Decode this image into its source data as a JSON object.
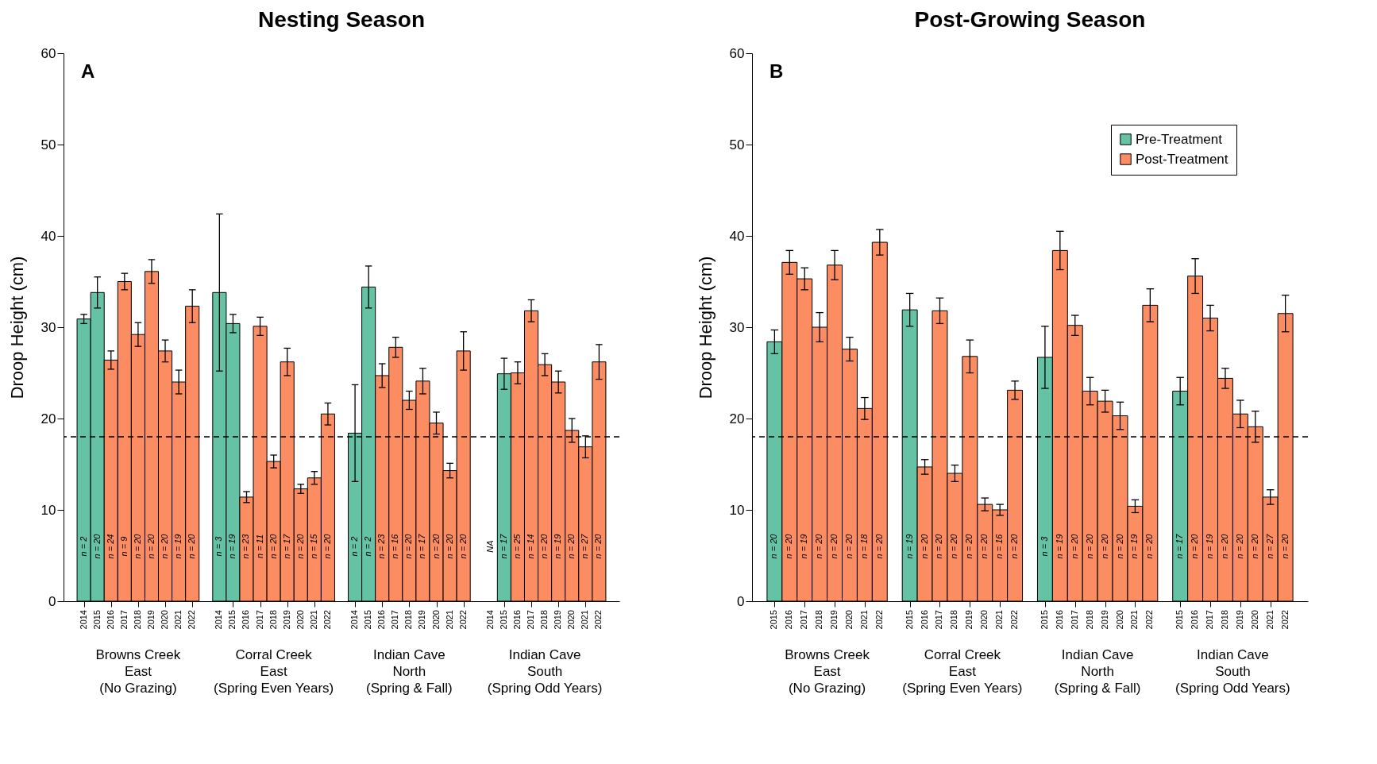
{
  "chart_data": [
    {
      "type": "bar",
      "title": "Nesting Season",
      "ylabel": "Droop Height (cm)",
      "ylim": [
        0,
        60
      ],
      "yticks": [
        0,
        10,
        20,
        30,
        40,
        50,
        60
      ],
      "categories": [
        "2014",
        "2015",
        "2016",
        "2017",
        "2018",
        "2019",
        "2020",
        "2021",
        "2022",
        null,
        "2014",
        "2015",
        "2016",
        "2017",
        "2018",
        "2019",
        "2020",
        "2021",
        "2022",
        null,
        "2014",
        "2015",
        "2016",
        "2017",
        "2018",
        "2019",
        "2020",
        "2021",
        "2022",
        null,
        "2014",
        "2015",
        "2016",
        "2017",
        "2018",
        "2019",
        "2020",
        "2021",
        "2022"
      ],
      "series": [
        {
          "color": "#66c2a5",
          "values": [
            30.9,
            33.8,
            null,
            null,
            null,
            null,
            null,
            null,
            null,
            null,
            33.8,
            30.4,
            null,
            null,
            null,
            null,
            null,
            null,
            null,
            null,
            18.4,
            34.4,
            null,
            null,
            null,
            null,
            null,
            null,
            null,
            null,
            null,
            24.9,
            null,
            null,
            null,
            null,
            null,
            null,
            null
          ],
          "errors": [
            0.5,
            1.7,
            null,
            null,
            null,
            null,
            null,
            null,
            null,
            null,
            8.6,
            1.0,
            null,
            null,
            null,
            null,
            null,
            null,
            null,
            null,
            5.3,
            2.3,
            null,
            null,
            null,
            null,
            null,
            null,
            null,
            null,
            null,
            1.7,
            null,
            null,
            null,
            null,
            null,
            null,
            null
          ]
        },
        {
          "color": "#fc8d62",
          "values": [
            null,
            null,
            26.4,
            35.0,
            29.2,
            36.1,
            27.4,
            24.0,
            32.3,
            null,
            null,
            null,
            11.4,
            30.1,
            15.3,
            26.2,
            12.3,
            13.5,
            20.5,
            null,
            null,
            null,
            24.7,
            27.8,
            22.0,
            24.1,
            19.5,
            14.3,
            27.4,
            null,
            null,
            null,
            25.0,
            31.8,
            25.9,
            24.0,
            18.7,
            16.9,
            26.2
          ],
          "errors": [
            null,
            null,
            1.0,
            0.9,
            1.3,
            1.3,
            1.2,
            1.3,
            1.8,
            null,
            null,
            null,
            0.6,
            1.0,
            0.7,
            1.5,
            0.5,
            0.7,
            1.2,
            null,
            null,
            null,
            1.3,
            1.1,
            1.0,
            1.4,
            1.2,
            0.8,
            2.1,
            null,
            null,
            null,
            1.2,
            1.2,
            1.2,
            1.2,
            1.3,
            1.2,
            1.9
          ]
        }
      ],
      "ref_lines": [
        {
          "axis": "y",
          "value": 18,
          "color": "#000000",
          "line_style": "dashed"
        }
      ],
      "annotations": [
        {
          "text": "A"
        },
        "n = 2",
        "n = 20",
        "n = 24",
        "n = 9",
        "n = 20",
        "n = 20",
        "n = 20",
        "n = 19",
        "n = 20",
        "n = 3",
        "n = 19",
        "n = 23",
        "n = 11",
        "n = 20",
        "n = 17",
        "n = 20",
        "n = 15",
        "n = 20",
        "n = 2",
        "n = 2",
        "n = 23",
        "n = 16",
        "n = 20",
        "n = 17",
        "n = 20",
        "n = 20",
        "n = 20",
        "NA",
        "n = 17",
        "n = 25",
        "n = 14",
        "n = 20",
        "n = 19",
        "n = 20",
        "n = 27",
        "n = 20",
        "Browns Creek\nEast\n(No Grazing)",
        "Corral Creek\nEast\n(Spring Even Years)",
        "Indian Cave\nNorth\n(Spring & Fall)",
        "Indian Cave\nSouth\n(Spring Odd Years)"
      ]
    },
    {
      "type": "bar",
      "title": "Post-Growing Season",
      "ylabel": "Droop Height (cm)",
      "ylim": [
        0,
        60
      ],
      "yticks": [
        0,
        10,
        20,
        30,
        40,
        50,
        60
      ],
      "legend": "top right",
      "categories": [
        "2015",
        "2016",
        "2017",
        "2018",
        "2019",
        "2020",
        "2021",
        "2022",
        null,
        "2015",
        "2016",
        "2017",
        "2018",
        "2019",
        "2020",
        "2021",
        "2022",
        null,
        "2015",
        "2016",
        "2017",
        "2018",
        "2019",
        "2020",
        "2021",
        "2022",
        null,
        "2015",
        "2016",
        "2017",
        "2018",
        "2019",
        "2020",
        "2021",
        "2022"
      ],
      "series": [
        {
          "name": "Pre-Treatment",
          "color": "#66c2a5",
          "values": [
            28.4,
            null,
            null,
            null,
            null,
            null,
            null,
            null,
            null,
            31.9,
            null,
            null,
            null,
            null,
            null,
            null,
            null,
            null,
            26.7,
            null,
            null,
            null,
            null,
            null,
            null,
            null,
            null,
            23.0,
            null,
            null,
            null,
            null,
            null,
            null,
            null
          ],
          "errors": [
            1.3,
            null,
            null,
            null,
            null,
            null,
            null,
            null,
            null,
            1.8,
            null,
            null,
            null,
            null,
            null,
            null,
            null,
            null,
            3.4,
            null,
            null,
            null,
            null,
            null,
            null,
            null,
            null,
            1.5,
            null,
            null,
            null,
            null,
            null,
            null,
            null
          ]
        },
        {
          "name": "Post-Treatment",
          "color": "#fc8d62",
          "values": [
            null,
            37.1,
            35.3,
            30.0,
            36.8,
            27.6,
            21.1,
            39.3,
            null,
            null,
            14.7,
            31.8,
            14.0,
            26.8,
            10.6,
            10.0,
            23.1,
            null,
            null,
            38.4,
            30.2,
            23.0,
            21.9,
            20.3,
            10.4,
            32.4,
            null,
            null,
            35.6,
            31.0,
            24.4,
            20.5,
            19.1,
            11.4,
            31.5
          ],
          "errors": [
            null,
            1.3,
            1.2,
            1.6,
            1.6,
            1.3,
            1.2,
            1.4,
            null,
            null,
            0.8,
            1.4,
            0.9,
            1.8,
            0.7,
            0.6,
            1.0,
            null,
            null,
            2.1,
            1.1,
            1.5,
            1.2,
            1.5,
            0.7,
            1.8,
            null,
            null,
            1.9,
            1.4,
            1.1,
            1.5,
            1.7,
            0.8,
            2.0
          ]
        }
      ],
      "ref_lines": [
        {
          "axis": "y",
          "value": 18,
          "color": "#000000",
          "line_style": "dashed"
        }
      ],
      "annotations": [
        {
          "text": "B"
        },
        "n = 20",
        "n = 20",
        "n = 19",
        "n = 20",
        "n = 20",
        "n = 20",
        "n = 18",
        "n = 20",
        "n = 19",
        "n = 20",
        "n = 20",
        "n = 20",
        "n = 20",
        "n = 20",
        "n = 16",
        "n = 20",
        "n = 3",
        "n = 19",
        "n = 20",
        "n = 20",
        "n = 20",
        "n = 20",
        "n = 19",
        "n = 20",
        "n = 17",
        "n = 20",
        "n = 19",
        "n = 20",
        "n = 20",
        "n = 20",
        "n = 27",
        "n = 20",
        "Browns Creek\nEast\n(No Grazing)",
        "Corral Creek\nEast\n(Spring Even Years)",
        "Indian Cave\nNorth\n(Spring & Fall)",
        "Indian Cave\nSouth\n(Spring Odd Years)"
      ]
    }
  ]
}
